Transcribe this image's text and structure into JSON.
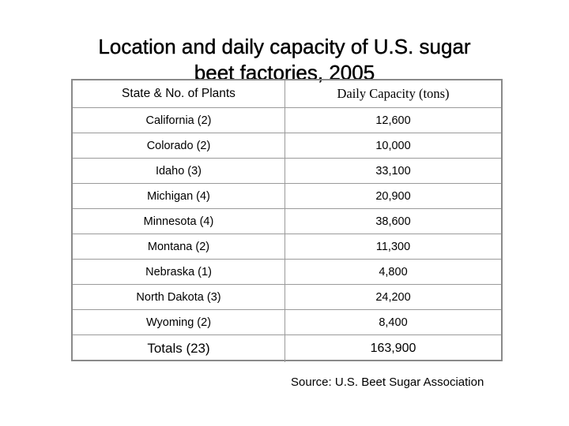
{
  "title": {
    "line1": "Location and daily capacity of U.S. sugar",
    "line2": "beet factories, 2005"
  },
  "table": {
    "headers": {
      "state": "State & No. of Plants",
      "capacity": "Daily Capacity (tons)"
    },
    "rows": [
      {
        "state": "California (2)",
        "capacity": "12,600"
      },
      {
        "state": "Colorado (2)",
        "capacity": "10,000"
      },
      {
        "state": "Idaho (3)",
        "capacity": "33,100"
      },
      {
        "state": "Michigan (4)",
        "capacity": "20,900"
      },
      {
        "state": "Minnesota (4)",
        "capacity": "38,600"
      },
      {
        "state": "Montana (2)",
        "capacity": "11,300"
      },
      {
        "state": "Nebraska (1)",
        "capacity": "4,800"
      },
      {
        "state": "North Dakota (3)",
        "capacity": "24,200"
      },
      {
        "state": "Wyoming (2)",
        "capacity": "8,400"
      }
    ],
    "totals": {
      "state": "Totals  (23)",
      "capacity": "163,900"
    }
  },
  "source": "Source: U.S. Beet Sugar Association"
}
